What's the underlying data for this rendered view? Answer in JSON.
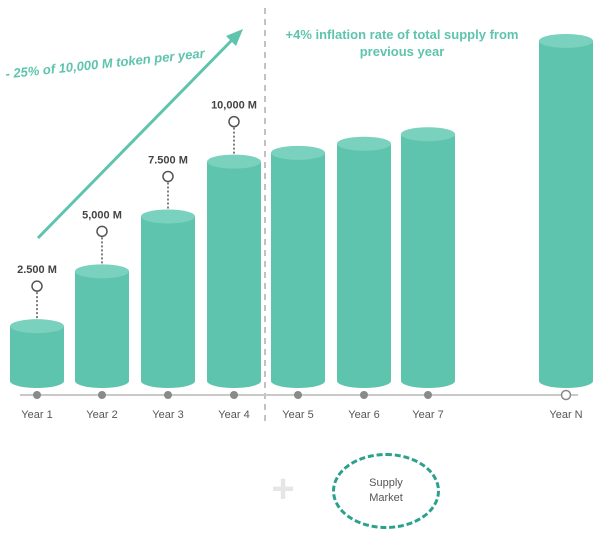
{
  "colors": {
    "bar": "#5ec4ae",
    "bar_top": "#79d1be",
    "axis": "#c9c9c9",
    "axis_dot": "#8a8a8a",
    "label": "#555555",
    "accent": "#5ec4ae",
    "circle_border": "#2aa18c"
  },
  "annotations": {
    "left": "- 25% of 10,000 M token per year",
    "right": "+4% inflation rate of total supply from previous year"
  },
  "footer": {
    "plus": "+",
    "supply_line1": "Supply",
    "supply_line2": "Market"
  },
  "chart_data": {
    "type": "bar",
    "categories": [
      "Year 1",
      "Year 2",
      "Year 3",
      "Year 4",
      "Year 5",
      "Year 6",
      "Year 7",
      "Year N"
    ],
    "values": [
      2500,
      5000,
      7500,
      10000,
      10400,
      10816,
      11249,
      null
    ],
    "data_labels": [
      "2.500 M",
      "5,000 M",
      "7.500 M",
      "10,000 M",
      "",
      "",
      "",
      ""
    ],
    "title": "",
    "xlabel": "",
    "ylabel": "",
    "ylim": [
      0,
      16000
    ],
    "grid": false,
    "year_n_level": 15500
  }
}
